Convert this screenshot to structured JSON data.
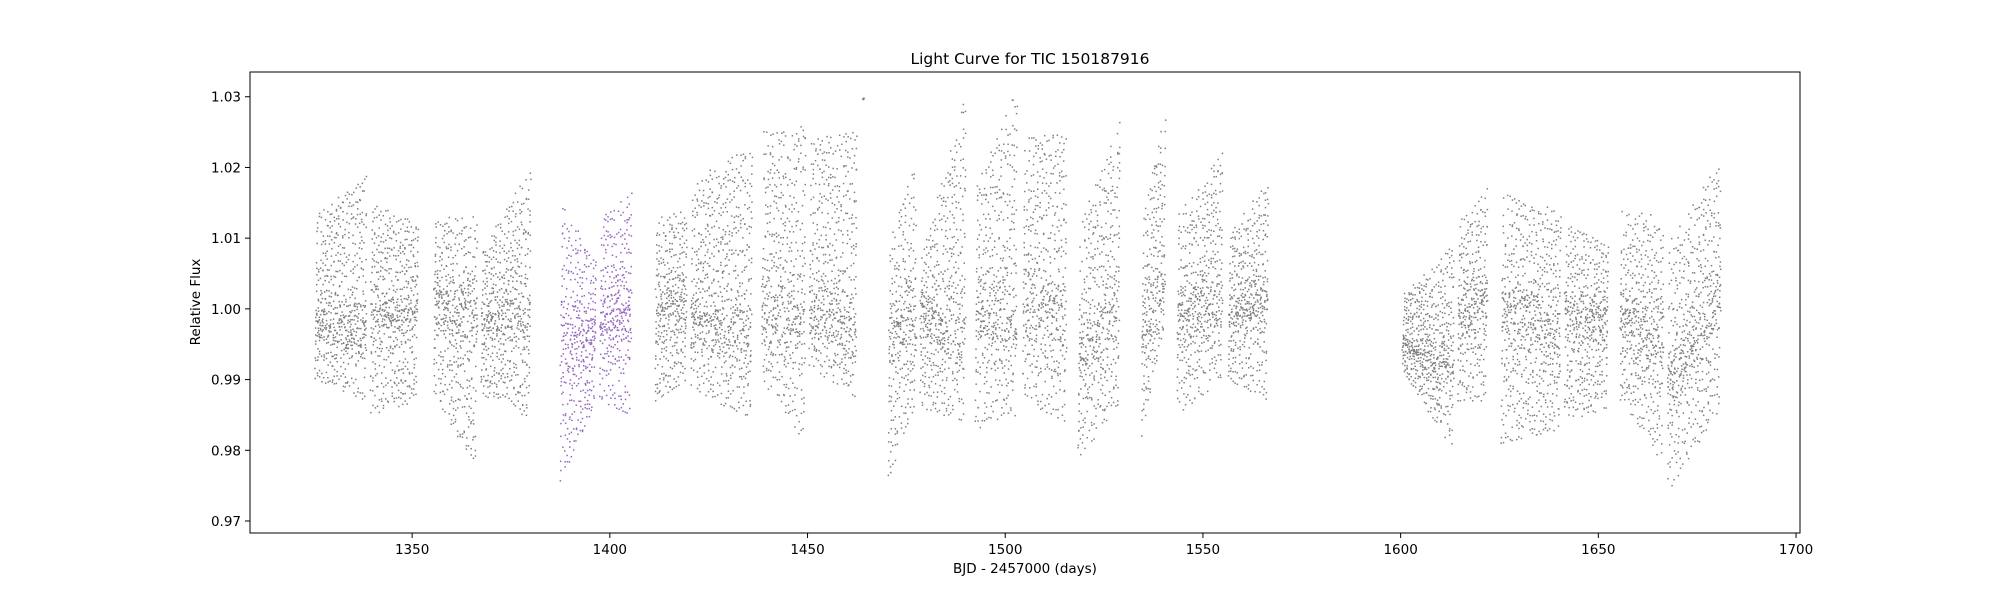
{
  "chart_data": {
    "type": "scatter",
    "title": "Light Curve for TIC 150187916",
    "xlabel": "BJD - 2457000 (days)",
    "ylabel": "Relative Flux",
    "xlim": [
      1309,
      1701
    ],
    "ylim": [
      0.9683,
      1.0335
    ],
    "xticks": [
      1350,
      1400,
      1450,
      1500,
      1550,
      1600,
      1650,
      1700
    ],
    "yticks": [
      0.97,
      0.98,
      0.99,
      1.0,
      1.01,
      1.02,
      1.03
    ],
    "ytick_labels": [
      "0.97",
      "0.98",
      "0.99",
      "1.00",
      "1.01",
      "1.02",
      "1.03"
    ],
    "grid": false,
    "legend": false,
    "colors": {
      "base": "#7f7f7f",
      "highlight": "#9467bd"
    },
    "series": [
      {
        "color": "#7f7f7f",
        "segments": [
          {
            "x": [
              1325.5,
              1338.5
            ],
            "min": [
              0.99,
              0.987
            ],
            "max": [
              1.013,
              1.019
            ],
            "center": [
              0.998,
              0.997
            ]
          },
          {
            "x": [
              1339.5,
              1351.5
            ],
            "min": [
              0.985,
              0.987
            ],
            "max": [
              1.015,
              1.012
            ],
            "center": [
              0.999,
              1.0
            ]
          },
          {
            "x": [
              1355.5,
              1366.5
            ],
            "min": [
              0.988,
              0.977
            ],
            "max": [
              1.013,
              1.013
            ],
            "center": [
              1.0,
              0.999
            ]
          },
          {
            "x": [
              1367.5,
              1380.0
            ],
            "min": [
              0.988,
              0.984
            ],
            "max": [
              1.008,
              1.02
            ],
            "center": [
              0.998,
              1.0
            ]
          },
          {
            "x": [
              1411.5,
              1419.5
            ],
            "min": [
              0.987,
              0.99
            ],
            "max": [
              1.013,
              1.014
            ],
            "center": [
              1.0,
              1.001
            ]
          },
          {
            "x": [
              1420.5,
              1436.0
            ],
            "min": [
              0.989,
              0.984
            ],
            "max": [
              1.018,
              1.023
            ],
            "center": [
              0.999,
              0.997
            ]
          },
          {
            "x": [
              1438.5,
              1449.5
            ],
            "min": [
              0.99,
              0.981
            ],
            "max": [
              1.025,
              1.026
            ],
            "center": [
              0.998,
              1.0
            ]
          },
          {
            "x": [
              1450.5,
              1462.5
            ],
            "min": [
              0.992,
              0.987
            ],
            "max": [
              1.024,
              1.025
            ],
            "center": [
              1.0,
              0.996
            ]
          },
          {
            "x": [
              1464.0,
              1464.3
            ],
            "min": [
              1.0296,
              1.0296
            ],
            "max": [
              1.0298,
              1.0298
            ],
            "center": [
              1.0297,
              1.0297
            ]
          },
          {
            "x": [
              1470.5,
              1477.5
            ],
            "min": [
              0.976,
              0.987
            ],
            "max": [
              1.009,
              1.021
            ],
            "center": [
              0.997,
              0.998
            ]
          },
          {
            "x": [
              1478.5,
              1490.0
            ],
            "min": [
              0.986,
              0.984
            ],
            "max": [
              1.007,
              1.03
            ],
            "center": [
              1.0,
              0.996
            ]
          },
          {
            "x": [
              1492.5,
              1503.0
            ],
            "min": [
              0.983,
              0.985
            ],
            "max": [
              1.017,
              1.031
            ],
            "center": [
              1.0,
              0.998
            ]
          },
          {
            "x": [
              1504.5,
              1515.5
            ],
            "min": [
              0.987,
              0.984
            ],
            "max": [
              1.024,
              1.025
            ],
            "center": [
              1.0,
              0.999
            ]
          },
          {
            "x": [
              1518.5,
              1529.0
            ],
            "min": [
              0.979,
              0.986
            ],
            "max": [
              1.011,
              1.027
            ],
            "center": [
              0.994,
              1.0
            ]
          },
          {
            "x": [
              1534.5,
              1540.5
            ],
            "min": [
              0.982,
              0.998
            ],
            "max": [
              1.012,
              1.028
            ],
            "center": [
              0.996,
              1.004
            ]
          },
          {
            "x": [
              1543.5,
              1555.0
            ],
            "min": [
              0.985,
              0.99
            ],
            "max": [
              1.013,
              1.022
            ],
            "center": [
              0.999,
              1.0
            ]
          },
          {
            "x": [
              1556.5,
              1566.5
            ],
            "min": [
              0.99,
              0.987
            ],
            "max": [
              1.011,
              1.018
            ],
            "center": [
              0.999,
              1.002
            ]
          },
          {
            "x": [
              1600.5,
              1613.5
            ],
            "min": [
              0.991,
              0.98
            ],
            "max": [
              1.002,
              1.009
            ],
            "center": [
              0.995,
              0.992
            ]
          },
          {
            "x": [
              1614.5,
              1622.0
            ],
            "min": [
              0.987,
              0.987
            ],
            "max": [
              1.012,
              1.017
            ],
            "center": [
              1.0,
              1.001
            ]
          },
          {
            "x": [
              1625.5,
              1640.5
            ],
            "min": [
              0.981,
              0.983
            ],
            "max": [
              1.017,
              1.014
            ],
            "center": [
              1.0,
              0.996
            ]
          },
          {
            "x": [
              1641.5,
              1652.5
            ],
            "min": [
              0.984,
              0.986
            ],
            "max": [
              1.012,
              1.009
            ],
            "center": [
              0.999,
              0.999
            ]
          },
          {
            "x": [
              1655.5,
              1666.5
            ],
            "min": [
              0.987,
              0.978
            ],
            "max": [
              1.014,
              1.013
            ],
            "center": [
              0.999,
              0.995
            ]
          },
          {
            "x": [
              1667.5,
              1681.0
            ],
            "min": [
              0.974,
              0.986
            ],
            "max": [
              1.009,
              1.021
            ],
            "center": [
              0.99,
              1.001
            ]
          }
        ]
      },
      {
        "color": "#9467bd",
        "segments": [
          {
            "x": [
              1387.5,
              1396.5
            ],
            "min": [
              0.975,
              0.987
            ],
            "max": [
              1.015,
              1.007
            ],
            "center": [
              0.995,
              0.996
            ]
          },
          {
            "x": [
              1397.5,
              1405.5
            ],
            "min": [
              0.987,
              0.985
            ],
            "max": [
              1.013,
              1.017
            ],
            "center": [
              0.998,
              0.999
            ]
          }
        ]
      }
    ]
  }
}
